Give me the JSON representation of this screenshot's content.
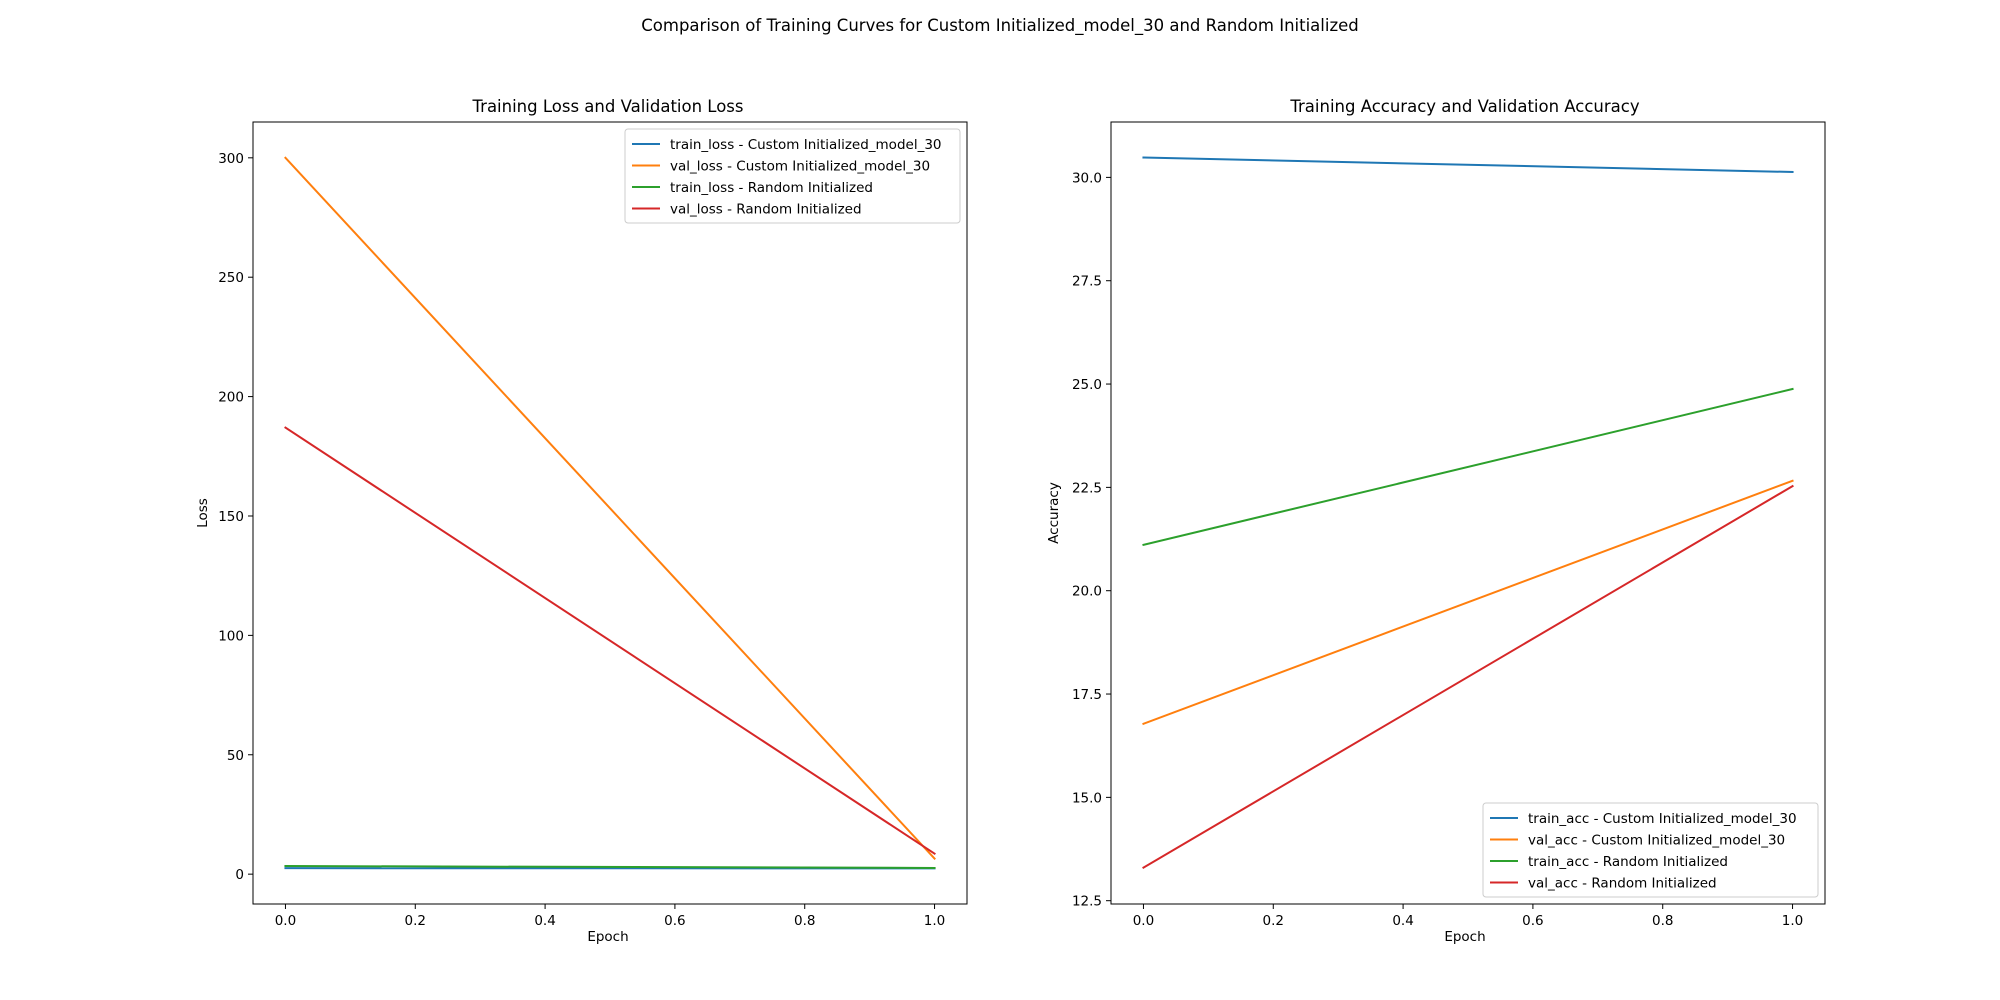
{
  "suptitle": "Comparison of Training Curves for Custom Initialized_model_30 and Random Initialized",
  "chart_data": [
    {
      "type": "line",
      "title": "Training Loss and Validation Loss",
      "xlabel": "Epoch",
      "ylabel": "Loss",
      "xlim": [
        -0.05,
        1.05
      ],
      "ylim": [
        -12.5,
        315
      ],
      "xticks": [
        0.0,
        0.2,
        0.4,
        0.6,
        0.8,
        1.0
      ],
      "xtick_labels": [
        "0.0",
        "0.2",
        "0.4",
        "0.6",
        "0.8",
        "1.0"
      ],
      "yticks": [
        0,
        50,
        100,
        150,
        200,
        250,
        300
      ],
      "ytick_labels": [
        "0",
        "50",
        "100",
        "150",
        "200",
        "250",
        "300"
      ],
      "legend_loc": "upper right",
      "grid": false,
      "x": [
        0,
        1
      ],
      "series": [
        {
          "name": "train_loss - Custom Initialized_model_30",
          "color": "#1f77b4",
          "values": [
            2.5,
            2.4
          ]
        },
        {
          "name": "val_loss - Custom Initialized_model_30",
          "color": "#ff7f0e",
          "values": [
            300.0,
            6.5
          ]
        },
        {
          "name": "train_loss - Random Initialized",
          "color": "#2ca02c",
          "values": [
            3.4,
            2.6
          ]
        },
        {
          "name": "val_loss - Random Initialized",
          "color": "#d62728",
          "values": [
            187.0,
            8.6
          ]
        }
      ]
    },
    {
      "type": "line",
      "title": "Training Accuracy and Validation Accuracy",
      "xlabel": "Epoch",
      "ylabel": "Accuracy",
      "xlim": [
        -0.05,
        1.05
      ],
      "ylim": [
        12.42,
        31.34
      ],
      "xticks": [
        0.0,
        0.2,
        0.4,
        0.6,
        0.8,
        1.0
      ],
      "xtick_labels": [
        "0.0",
        "0.2",
        "0.4",
        "0.6",
        "0.8",
        "1.0"
      ],
      "yticks": [
        12.5,
        15.0,
        17.5,
        20.0,
        22.5,
        25.0,
        27.5,
        30.0
      ],
      "ytick_labels": [
        "12.5",
        "15.0",
        "17.5",
        "20.0",
        "22.5",
        "25.0",
        "27.5",
        "30.0"
      ],
      "legend_loc": "lower right",
      "grid": false,
      "x": [
        0,
        1
      ],
      "series": [
        {
          "name": "train_acc - Custom Initialized_model_30",
          "color": "#1f77b4",
          "values": [
            30.48,
            30.13
          ]
        },
        {
          "name": "val_acc - Custom Initialized_model_30",
          "color": "#ff7f0e",
          "values": [
            16.78,
            22.66
          ]
        },
        {
          "name": "train_acc - Random Initialized",
          "color": "#2ca02c",
          "values": [
            21.11,
            24.88
          ]
        },
        {
          "name": "val_acc - Random Initialized",
          "color": "#d62728",
          "values": [
            13.3,
            22.53
          ]
        }
      ]
    }
  ]
}
